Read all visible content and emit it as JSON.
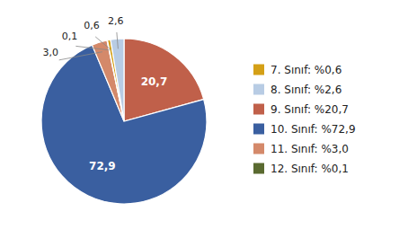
{
  "chart_data": {
    "type": "pie",
    "values": [
      20.7,
      72.9,
      3.0,
      0.1,
      0.6,
      2.6
    ],
    "value_labels": [
      "20,7",
      "72,9",
      "3,0",
      "0,1",
      "0,6",
      "2,6"
    ],
    "colors": [
      "#c0604a",
      "#3a5fa0",
      "#d4896a",
      "#5a6a30",
      "#d4a017",
      "#b8cce4"
    ],
    "data_labels": true,
    "legend": "right",
    "legend_entries": [
      {
        "label": "7. Sınıf: %0,6",
        "color": "#d4a017"
      },
      {
        "label": "8. Sınıf: %2,6",
        "color": "#b8cce4"
      },
      {
        "label": "9. Sınıf: %20,7",
        "color": "#c0604a"
      },
      {
        "label": "10. Sınıf: %72,9",
        "color": "#3a5fa0"
      },
      {
        "label": "11. Sınıf: %3,0",
        "color": "#d4896a"
      },
      {
        "label": "12. Sınıf: %0,1",
        "color": "#5a6a30"
      }
    ]
  }
}
